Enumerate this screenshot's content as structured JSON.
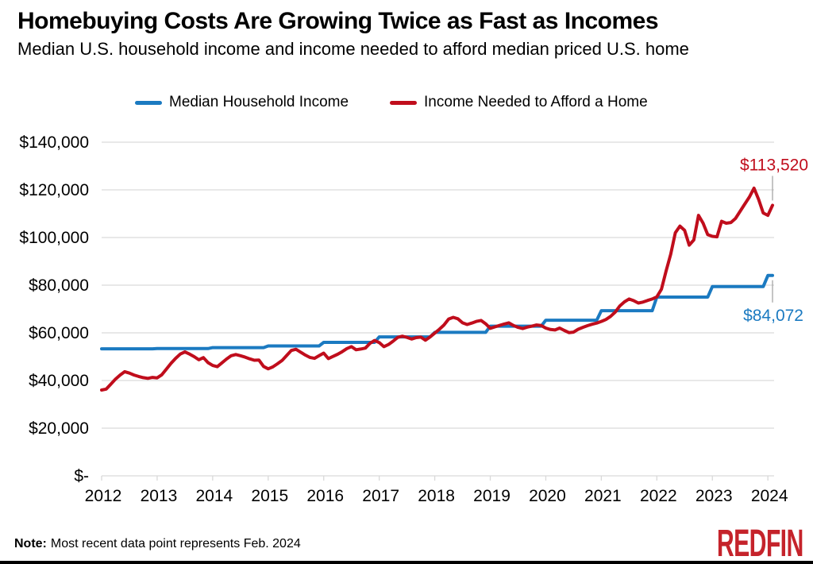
{
  "header": {
    "title": "Homebuying Costs Are Growing Twice as Fast as Incomes",
    "subtitle": "Median U.S. household income and income needed to afford median priced U.S. home"
  },
  "note": {
    "prefix": "Note:",
    "text": "Most recent data point represents Feb. 2024"
  },
  "brand": {
    "logo_text": "REDFIN",
    "logo_color": "#c5232b"
  },
  "chart_data": {
    "type": "line",
    "title": "Homebuying Costs Are Growing Twice as Fast as Incomes",
    "subtitle": "Median U.S. household income and income needed to afford median priced U.S. home",
    "xlabel": "",
    "ylabel": "",
    "x_unit": "month",
    "x_start": "2012-01",
    "x_end": "2024-02",
    "x_tick_labels": [
      "2012",
      "2013",
      "2014",
      "2015",
      "2016",
      "2017",
      "2018",
      "2019",
      "2020",
      "2021",
      "2022",
      "2023",
      "2024"
    ],
    "ylim": [
      0,
      140000
    ],
    "y_ticks": [
      0,
      20000,
      40000,
      60000,
      80000,
      100000,
      120000,
      140000
    ],
    "grid": "horizontal",
    "legend_position": "top",
    "colors": {
      "gridline": "#d9d9d9",
      "axis": "#d9d9d9",
      "callout": "#a6a6a6"
    },
    "series": [
      {
        "name": "Median Household Income",
        "color": "#1b7ac1",
        "kind": "annual-step",
        "annual_years": [
          2012,
          2013,
          2014,
          2015,
          2016,
          2017,
          2018,
          2019,
          2020,
          2021,
          2022,
          2023,
          2024
        ],
        "annual_values": [
          53300,
          53400,
          53800,
          54500,
          56000,
          58300,
          60200,
          62800,
          65300,
          69300,
          75000,
          79400,
          84072
        ],
        "end_label": "$84,072",
        "label_side": "below"
      },
      {
        "name": "Income Needed to Afford a Home",
        "color": "#c00d1c",
        "kind": "monthly",
        "values": [
          36000,
          36400,
          38500,
          40600,
          42300,
          43700,
          43100,
          42300,
          41700,
          41200,
          40900,
          41300,
          41100,
          42400,
          44800,
          47200,
          49300,
          51100,
          52000,
          51100,
          50000,
          48700,
          49600,
          47500,
          46300,
          45800,
          47400,
          49000,
          50400,
          50900,
          50400,
          49800,
          49100,
          48500,
          48600,
          45900,
          44900,
          45700,
          47000,
          48400,
          50500,
          52600,
          53100,
          51900,
          50700,
          49700,
          49300,
          50400,
          51500,
          49200,
          50100,
          51000,
          52100,
          53400,
          54200,
          52900,
          53200,
          53600,
          55600,
          56800,
          55900,
          54200,
          55100,
          56500,
          58100,
          58600,
          58100,
          57400,
          58000,
          58200,
          56900,
          58300,
          59900,
          61500,
          63300,
          65800,
          66500,
          65900,
          64200,
          63500,
          64100,
          64800,
          65200,
          63800,
          61900,
          62500,
          63100,
          63700,
          64200,
          63100,
          62300,
          61800,
          62400,
          62800,
          63300,
          63100,
          62000,
          61400,
          61200,
          62000,
          61000,
          60100,
          60300,
          61500,
          62300,
          63000,
          63600,
          64100,
          64800,
          65600,
          66900,
          68700,
          71300,
          73000,
          74200,
          73500,
          72500,
          72900,
          73600,
          74200,
          75100,
          78300,
          86000,
          93000,
          102000,
          104800,
          103000,
          96800,
          99000,
          109300,
          106000,
          101200,
          100500,
          100300,
          106800,
          106000,
          106300,
          108000,
          111000,
          114000,
          117000,
          120700,
          116000,
          110300,
          109300,
          113520
        ],
        "end_label": "$113,520",
        "label_side": "above"
      }
    ]
  }
}
